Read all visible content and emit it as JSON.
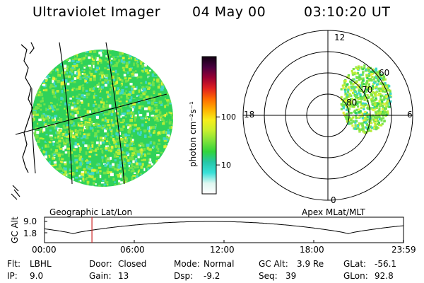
{
  "header": {
    "instrument": "Ultraviolet Imager",
    "date": "04 May 00",
    "time": "03:10:20 UT"
  },
  "geo_panel": {
    "caption": "Geographic Lat/Lon",
    "image_shape": "disk",
    "fill_colors": [
      "#2fd25a",
      "#74e24a",
      "#b6ec36",
      "#e6f03a",
      "#3ed6c6",
      "#ffffff"
    ]
  },
  "colorbar": {
    "unit_label": "photon cm⁻²s⁻¹",
    "scale": "log",
    "ticks": [
      "100",
      "10"
    ],
    "tick_values": [
      100,
      10
    ],
    "range": [
      2.5,
      1800
    ],
    "colors": [
      "#ffffff",
      "#dff7f0",
      "#38e0d8",
      "#26c7a8",
      "#32d43c",
      "#7ee23a",
      "#c8ef2e",
      "#f6ee1c",
      "#ffb000",
      "#ff6a00",
      "#e02020",
      "#9a0033",
      "#4a0040",
      "#110012"
    ]
  },
  "polar_panel": {
    "caption": "Apex MLat/MLT",
    "mlt_labels": {
      "top": "12",
      "left": "18",
      "right": "6",
      "bottom": "0"
    },
    "mlat_labels": [
      "60",
      "70",
      "80"
    ],
    "mlat_values": [
      60,
      70,
      80
    ]
  },
  "altitude_plot": {
    "ylabel": "GC Alt",
    "y_ticks": [
      "9.0",
      "1.8"
    ],
    "y_tick_values": [
      9.0,
      1.8
    ],
    "x_ticks": [
      "00:00",
      "06:00",
      "12:00",
      "18:00",
      "23:59"
    ],
    "x_tick_hours": [
      0,
      6,
      12,
      18,
      23.983
    ],
    "current_time_hours": 3.17,
    "marker_color": "#cc2222"
  },
  "footer": {
    "flt_label": "Flt:",
    "flt_value": "LBHL",
    "ip_label": "IP:",
    "ip_value": "9.0",
    "door_label": "Door:",
    "door_value": "Closed",
    "gain_label": "Gain:",
    "gain_value": "13",
    "mode_label": "Mode:",
    "mode_value": "Normal",
    "dsp_label": "Dsp:",
    "dsp_value": "-9.2",
    "gcalt_label": "GC Alt:",
    "gcalt_value": "3.9 Re",
    "seq_label": "Seq:",
    "seq_value": "39",
    "glat_label": "GLat:",
    "glat_value": "-56.1",
    "glon_label": "GLon:",
    "glon_value": "92.8"
  }
}
